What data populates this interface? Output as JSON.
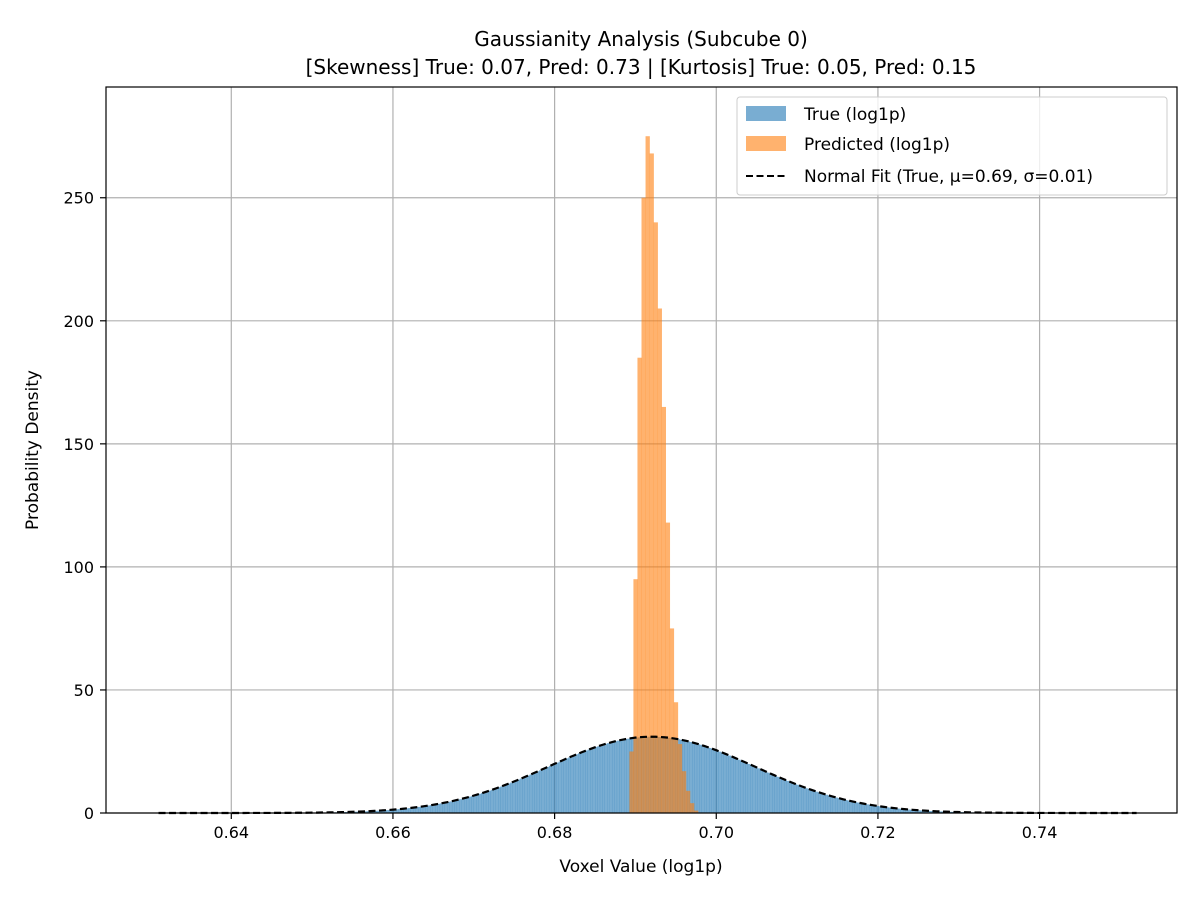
{
  "chart_data": {
    "type": "histogram",
    "title": "Gaussianity Analysis (Subcube 0)",
    "subtitle": "[Skewness] True: 0.07, Pred: 0.73 | [Kurtosis] True: 0.05, Pred: 0.15",
    "xlabel": "Voxel Value (log1p)",
    "ylabel": "Probability Density",
    "xlim": [
      0.6245,
      0.757
    ],
    "ylim": [
      0,
      295
    ],
    "xticks": [
      "0.64",
      "0.66",
      "0.68",
      "0.70",
      "0.72",
      "0.74"
    ],
    "xtick_values": [
      0.64,
      0.66,
      0.68,
      0.7,
      0.72,
      0.74
    ],
    "yticks": [
      "0",
      "50",
      "100",
      "150",
      "200",
      "250"
    ],
    "ytick_values": [
      0,
      50,
      100,
      150,
      200,
      250
    ],
    "grid": true,
    "legend_position": "top-right",
    "series": [
      {
        "name": "True (log1p)",
        "kind": "histogram",
        "color": "#1f77b4",
        "alpha": 0.6,
        "bin_edges_range": [
          0.646,
          0.736
        ],
        "mean": 0.692,
        "std": 0.0128,
        "density_peak": 31
      },
      {
        "name": "Predicted (log1p)",
        "kind": "histogram",
        "color": "#ff7f0e",
        "alpha": 0.6,
        "x": [
          0.6895,
          0.69,
          0.6905,
          0.691,
          0.6915,
          0.692,
          0.6925,
          0.693,
          0.6935,
          0.694,
          0.6945,
          0.695,
          0.6955,
          0.696,
          0.6965,
          0.697,
          0.6975
        ],
        "values": [
          25,
          95,
          185,
          250,
          275,
          268,
          240,
          205,
          165,
          118,
          75,
          45,
          28,
          17,
          9,
          4,
          1
        ]
      },
      {
        "name": "Normal Fit (True, μ=0.69, σ=0.01)",
        "kind": "line",
        "color": "#000000",
        "dash": "dashed",
        "mean": 0.692,
        "std": 0.0128,
        "x_range": [
          0.631,
          0.752
        ]
      }
    ]
  }
}
